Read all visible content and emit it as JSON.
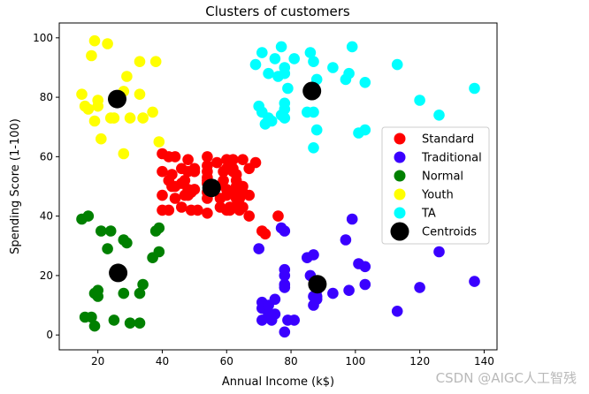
{
  "chart_data": {
    "type": "scatter",
    "title": "Clusters of customers",
    "xlabel": "Annual Income (k$)",
    "ylabel": "Spending Score (1-100)",
    "xlim": [
      8,
      144
    ],
    "ylim": [
      -5,
      105
    ],
    "xticks": [
      20,
      40,
      60,
      80,
      100,
      120,
      140
    ],
    "yticks": [
      0,
      20,
      40,
      60,
      80,
      100
    ],
    "grid": false,
    "legend_position": "center-right",
    "series": [
      {
        "name": "Standard",
        "color": "#ff0000",
        "points": [
          [
            40,
            42
          ],
          [
            40,
            47
          ],
          [
            40,
            55
          ],
          [
            40,
            61
          ],
          [
            42,
            42
          ],
          [
            42,
            52
          ],
          [
            42,
            60
          ],
          [
            43,
            50
          ],
          [
            43,
            54
          ],
          [
            44,
            46
          ],
          [
            44,
            50
          ],
          [
            44,
            60
          ],
          [
            46,
            43
          ],
          [
            46,
            51
          ],
          [
            46,
            56
          ],
          [
            47,
            47
          ],
          [
            47,
            52
          ],
          [
            48,
            47
          ],
          [
            48,
            49
          ],
          [
            48,
            59
          ],
          [
            48,
            55
          ],
          [
            49,
            42
          ],
          [
            49,
            48
          ],
          [
            50,
            55
          ],
          [
            50,
            49
          ],
          [
            50,
            56
          ],
          [
            51,
            42
          ],
          [
            54,
            41
          ],
          [
            54,
            46
          ],
          [
            54,
            48
          ],
          [
            54,
            53
          ],
          [
            54,
            51
          ],
          [
            54,
            52
          ],
          [
            54,
            55
          ],
          [
            54,
            57
          ],
          [
            54,
            60
          ],
          [
            57,
            50
          ],
          [
            57,
            58
          ],
          [
            58,
            46
          ],
          [
            58,
            43
          ],
          [
            59,
            52
          ],
          [
            59,
            55
          ],
          [
            60,
            47
          ],
          [
            60,
            42
          ],
          [
            60,
            49
          ],
          [
            60,
            56
          ],
          [
            60,
            59
          ],
          [
            61,
            42
          ],
          [
            61,
            43
          ],
          [
            62,
            48
          ],
          [
            62,
            59
          ],
          [
            62,
            55
          ],
          [
            62,
            56
          ],
          [
            63,
            46
          ],
          [
            63,
            50
          ],
          [
            63,
            43
          ],
          [
            63,
            52
          ],
          [
            63,
            54
          ],
          [
            64,
            42
          ],
          [
            64,
            46
          ],
          [
            65,
            48
          ],
          [
            65,
            50
          ],
          [
            65,
            43
          ],
          [
            65,
            59
          ],
          [
            67,
            56
          ],
          [
            67,
            40
          ],
          [
            67,
            47
          ],
          [
            69,
            58
          ],
          [
            71,
            35
          ],
          [
            72,
            34
          ],
          [
            76,
            40
          ]
        ]
      },
      {
        "name": "Traditional",
        "color": "#3a00ff",
        "points": [
          [
            70,
            29
          ],
          [
            71,
            11
          ],
          [
            71,
            9
          ],
          [
            71,
            5
          ],
          [
            73,
            7
          ],
          [
            73,
            10
          ],
          [
            74,
            5
          ],
          [
            75,
            7
          ],
          [
            75,
            12
          ],
          [
            77,
            36
          ],
          [
            78,
            1
          ],
          [
            78,
            22
          ],
          [
            78,
            17
          ],
          [
            78,
            20
          ],
          [
            78,
            16
          ],
          [
            78,
            35
          ],
          [
            79,
            5
          ],
          [
            81,
            5
          ],
          [
            85,
            26
          ],
          [
            86,
            20
          ],
          [
            87,
            27
          ],
          [
            87,
            13
          ],
          [
            87,
            10
          ],
          [
            88,
            13
          ],
          [
            88,
            15
          ],
          [
            88,
            12
          ],
          [
            93,
            14
          ],
          [
            97,
            32
          ],
          [
            98,
            15
          ],
          [
            99,
            39
          ],
          [
            101,
            24
          ],
          [
            103,
            17
          ],
          [
            103,
            23
          ],
          [
            113,
            8
          ],
          [
            120,
            16
          ],
          [
            126,
            28
          ],
          [
            137,
            18
          ]
        ]
      },
      {
        "name": "Normal",
        "color": "#008000",
        "points": [
          [
            15,
            39
          ],
          [
            16,
            6
          ],
          [
            17,
            40
          ],
          [
            18,
            6
          ],
          [
            19,
            3
          ],
          [
            19,
            14
          ],
          [
            20,
            15
          ],
          [
            20,
            13
          ],
          [
            21,
            35
          ],
          [
            23,
            29
          ],
          [
            24,
            35
          ],
          [
            25,
            5
          ],
          [
            28,
            14
          ],
          [
            28,
            32
          ],
          [
            29,
            31
          ],
          [
            30,
            4
          ],
          [
            33,
            4
          ],
          [
            33,
            14
          ],
          [
            34,
            17
          ],
          [
            37,
            26
          ],
          [
            38,
            35
          ],
          [
            39,
            36
          ],
          [
            39,
            28
          ]
        ]
      },
      {
        "name": "Youth",
        "color": "#ffff00",
        "points": [
          [
            15,
            81
          ],
          [
            16,
            77
          ],
          [
            17,
            76
          ],
          [
            18,
            94
          ],
          [
            19,
            99
          ],
          [
            19,
            72
          ],
          [
            20,
            77
          ],
          [
            20,
            79
          ],
          [
            21,
            66
          ],
          [
            23,
            98
          ],
          [
            24,
            73
          ],
          [
            25,
            73
          ],
          [
            28,
            82
          ],
          [
            28,
            61
          ],
          [
            29,
            87
          ],
          [
            30,
            73
          ],
          [
            33,
            92
          ],
          [
            33,
            81
          ],
          [
            34,
            73
          ],
          [
            37,
            75
          ],
          [
            38,
            92
          ],
          [
            39,
            65
          ]
        ]
      },
      {
        "name": "TA",
        "color": "#00ffff",
        "points": [
          [
            69,
            91
          ],
          [
            70,
            77
          ],
          [
            71,
            95
          ],
          [
            71,
            75
          ],
          [
            72,
            71
          ],
          [
            73,
            88
          ],
          [
            73,
            73
          ],
          [
            74,
            72
          ],
          [
            75,
            93
          ],
          [
            76,
            87
          ],
          [
            77,
            97
          ],
          [
            77,
            74
          ],
          [
            78,
            90
          ],
          [
            78,
            88
          ],
          [
            78,
            76
          ],
          [
            78,
            73
          ],
          [
            78,
            78
          ],
          [
            79,
            83
          ],
          [
            81,
            93
          ],
          [
            85,
            75
          ],
          [
            86,
            95
          ],
          [
            87,
            63
          ],
          [
            87,
            75
          ],
          [
            87,
            92
          ],
          [
            88,
            86
          ],
          [
            88,
            69
          ],
          [
            93,
            90
          ],
          [
            97,
            86
          ],
          [
            98,
            88
          ],
          [
            99,
            97
          ],
          [
            101,
            68
          ],
          [
            103,
            85
          ],
          [
            103,
            69
          ],
          [
            113,
            91
          ],
          [
            120,
            79
          ],
          [
            126,
            74
          ],
          [
            137,
            83
          ]
        ]
      },
      {
        "name": "Centroids",
        "color": "#000000",
        "points": [
          [
            26,
            79.4
          ],
          [
            55.3,
            49.5
          ],
          [
            86.5,
            82.1
          ],
          [
            88.2,
            17.1
          ],
          [
            26.3,
            20.9
          ]
        ]
      }
    ]
  },
  "watermark": "CSDN @AIGC人工智残"
}
